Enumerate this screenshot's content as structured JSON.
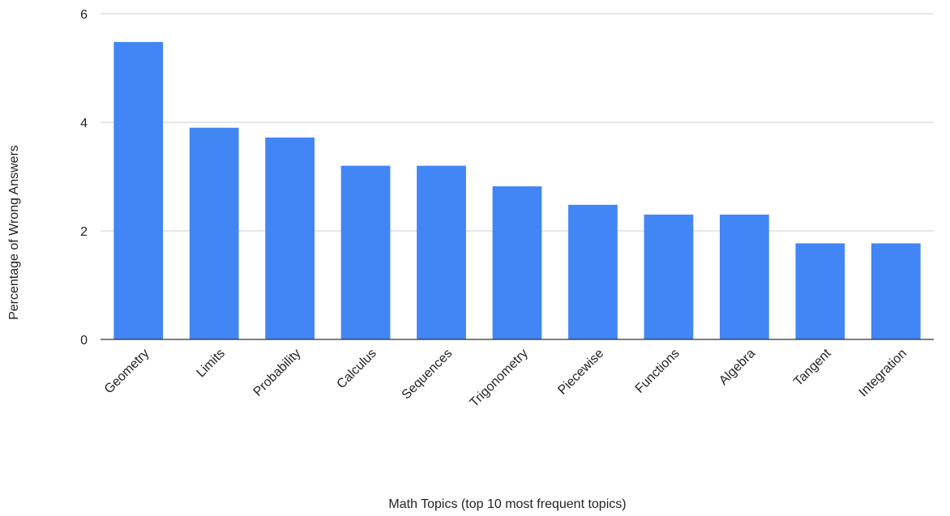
{
  "chart_data": {
    "type": "bar",
    "title": "",
    "xlabel": "Math Topics (top 10 most frequent topics)",
    "ylabel": "Percentage of Wrong Answers",
    "categories": [
      "Geometry",
      "Limits",
      "Probability",
      "Calculus",
      "Sequences",
      "Trigonometry",
      "Piecewise",
      "Functions",
      "Algebra",
      "Tangent",
      "Integration"
    ],
    "values": [
      5.48,
      3.9,
      3.72,
      3.2,
      3.2,
      2.82,
      2.48,
      2.3,
      2.3,
      1.77,
      1.77
    ],
    "ylim": [
      0,
      6
    ],
    "yticks": [
      "0",
      "2",
      "4",
      "6"
    ],
    "grid": true,
    "legend": "none",
    "bar_color": "#4285f4"
  }
}
